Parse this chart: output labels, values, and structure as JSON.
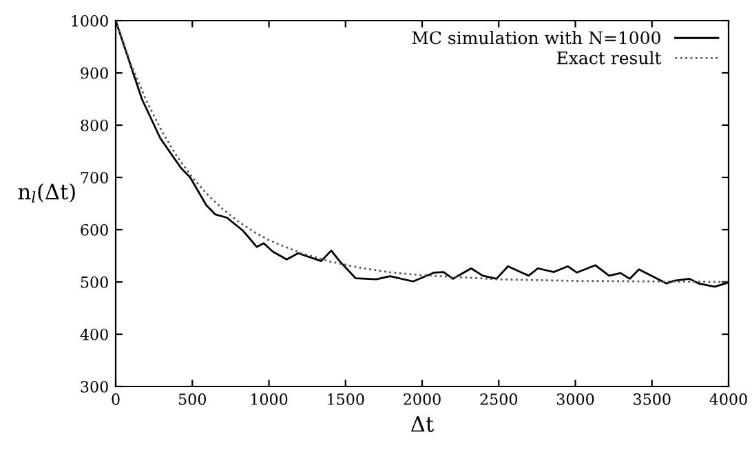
{
  "chart_data": {
    "type": "line",
    "xlabel": "Δt",
    "ylabel": "n$_{l}$(Δt)",
    "xlim": [
      0,
      4000
    ],
    "ylim": [
      300,
      1000
    ],
    "xticks": [
      0,
      500,
      1000,
      1500,
      2000,
      2500,
      3000,
      3500,
      4000
    ],
    "yticks": [
      300,
      400,
      500,
      600,
      700,
      800,
      900,
      1000
    ],
    "legend": "top right",
    "grid": false,
    "series": [
      {
        "name": "MC simulation with N=1000",
        "color": "#000000",
        "line_style": "solid",
        "x": [
          0,
          171,
          291,
          426,
          486,
          591,
          651,
          726,
          831,
          921,
          966,
          1026,
          1116,
          1191,
          1341,
          1407,
          1461,
          1566,
          1701,
          1791,
          1941,
          2080,
          2140,
          2200,
          2320,
          2395,
          2485,
          2560,
          2695,
          2755,
          2860,
          2950,
          3010,
          3130,
          3220,
          3295,
          3355,
          3415,
          3595,
          3640,
          3745,
          3805,
          3910,
          4000
        ],
        "values": [
          1000,
          850,
          775,
          718,
          700,
          647,
          629,
          623,
          598,
          567,
          574,
          558,
          543,
          555,
          540,
          560,
          540,
          507,
          505,
          511,
          501,
          518,
          519,
          506,
          526,
          512,
          506,
          530,
          512,
          526,
          519,
          530,
          518,
          532,
          512,
          517,
          506,
          524,
          497,
          502,
          506,
          497,
          491,
          499
        ]
      },
      {
        "name": "Exact result",
        "color": "#555555",
        "line_style": "dotted",
        "x": [
          0,
          100,
          200,
          300,
          400,
          500,
          600,
          700,
          800,
          900,
          1000,
          1200,
          1400,
          1600,
          1800,
          2000,
          2500,
          3000,
          4000
        ],
        "values": [
          1000,
          916,
          847,
          789,
          740,
          700,
          667,
          639,
          616,
          596,
          580,
          556,
          539,
          527,
          518,
          513,
          505,
          502,
          500
        ]
      }
    ]
  }
}
